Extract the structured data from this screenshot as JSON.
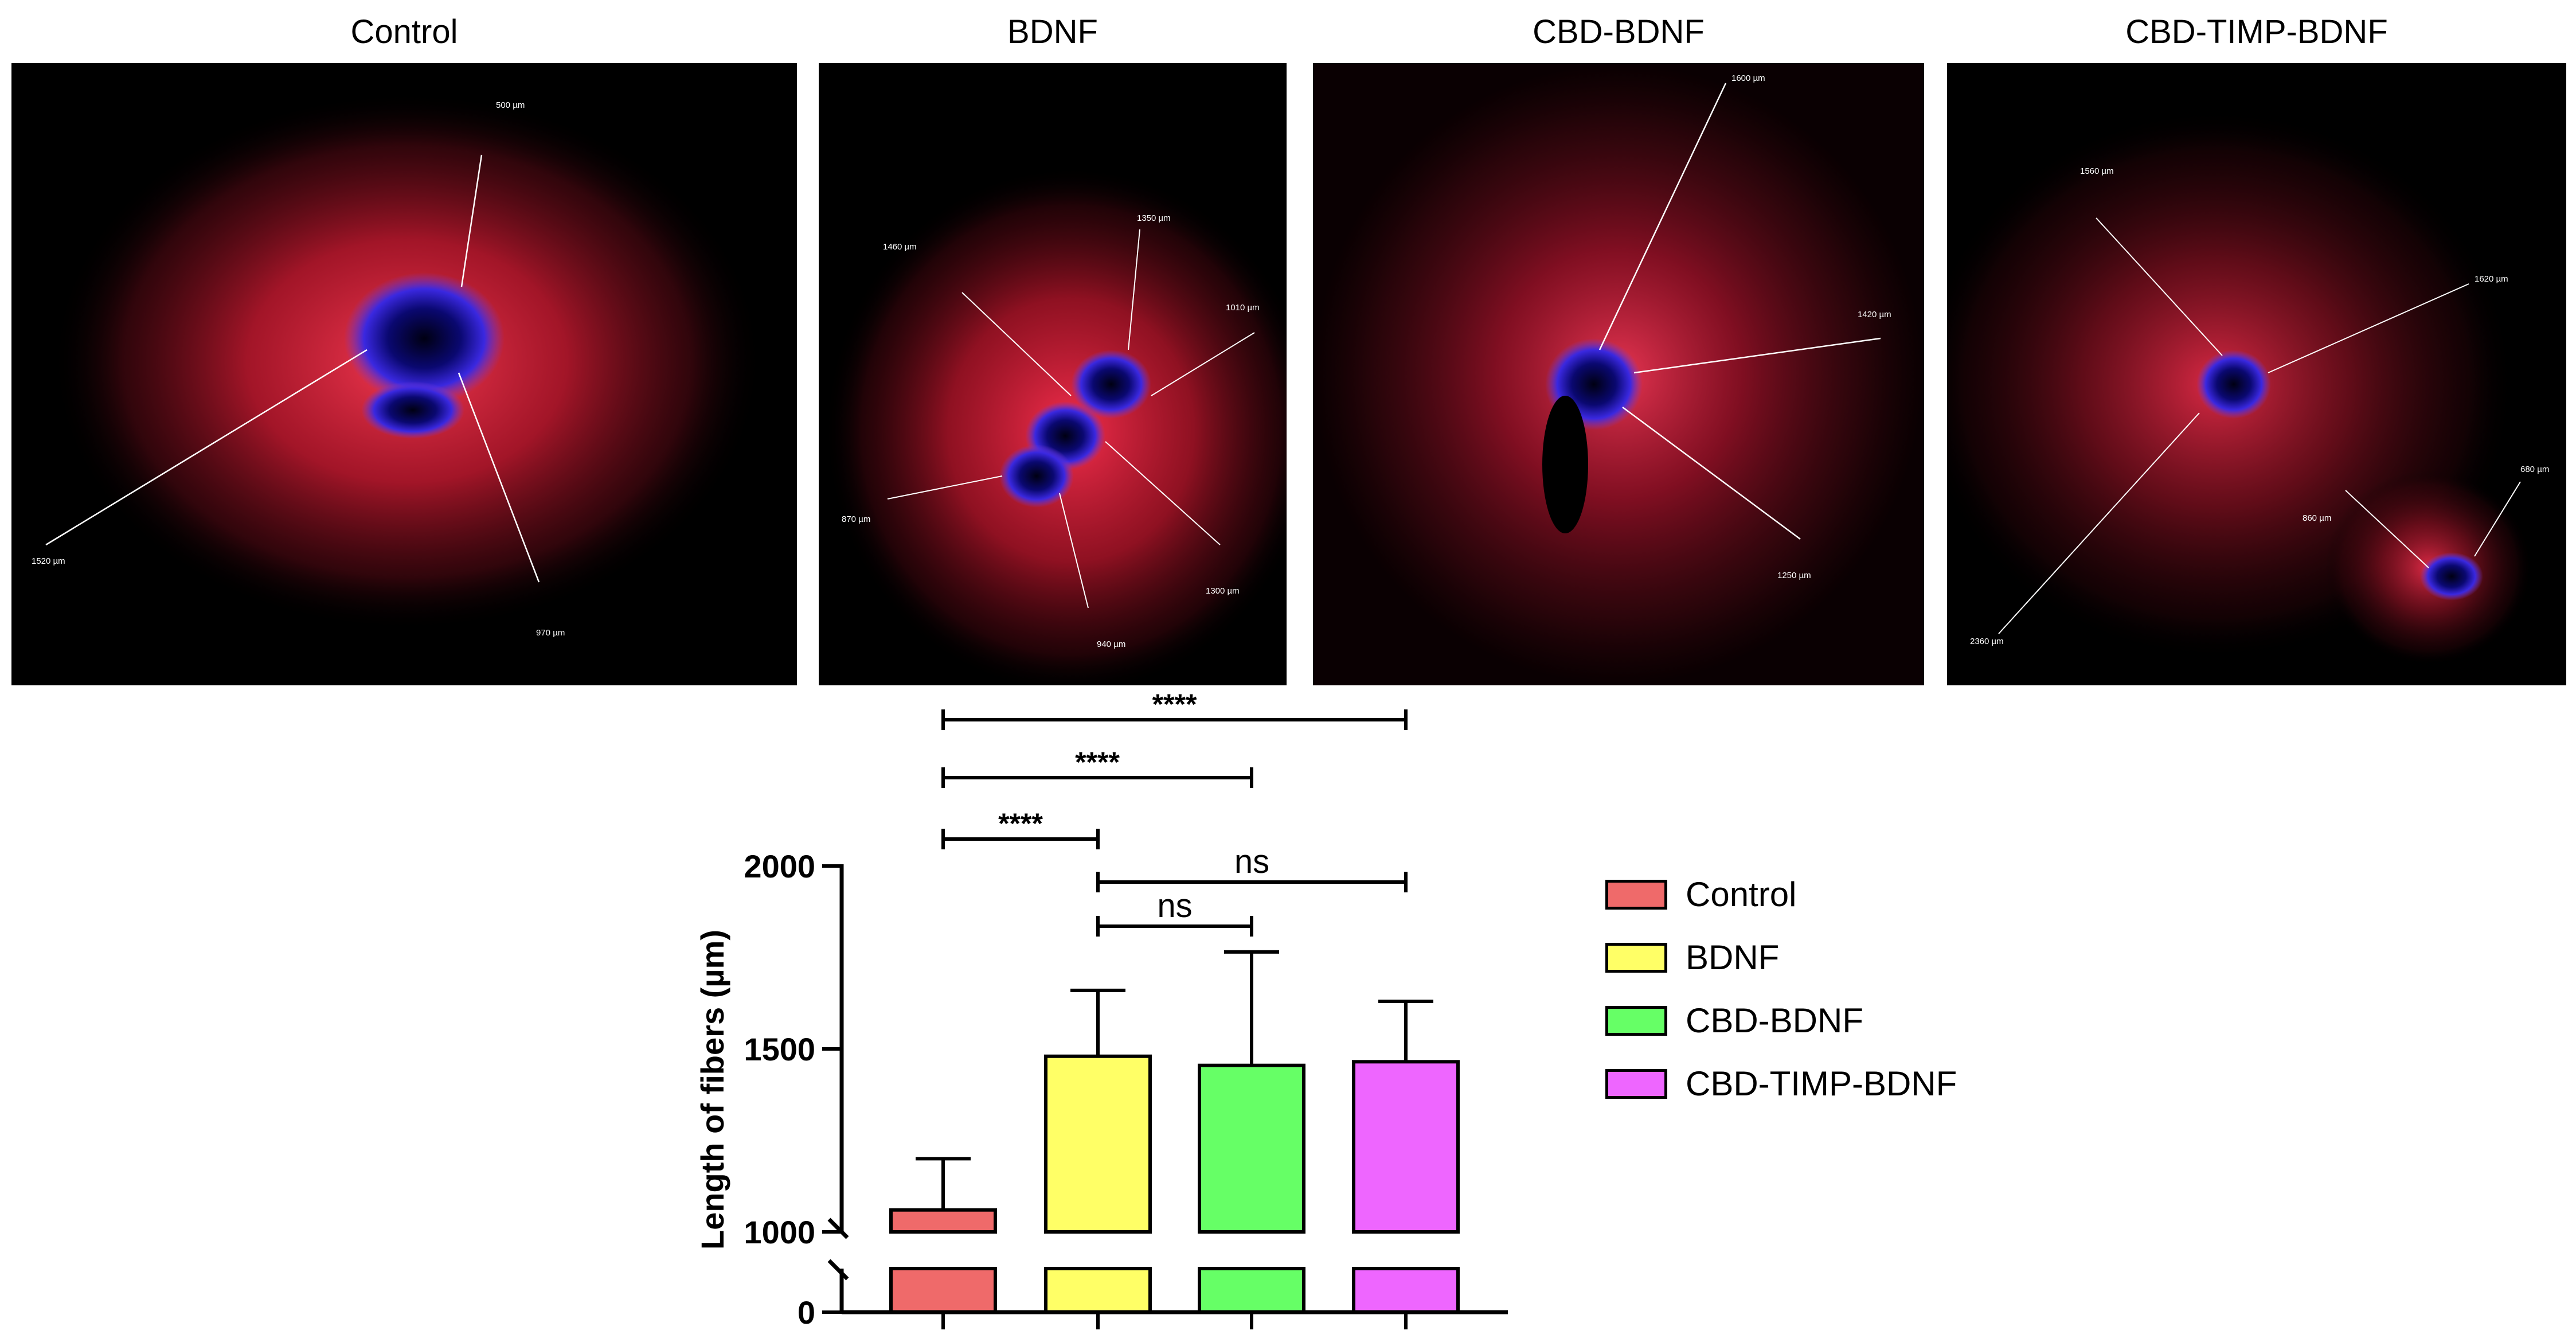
{
  "panels": [
    {
      "title": "Control",
      "measurements": [
        "500 µm",
        "1520 µm",
        "970 µm"
      ],
      "dots": [
        "blue-main",
        "blue-second"
      ]
    },
    {
      "title": "BDNF",
      "measurements": [
        "1350 µm",
        "1460 µm",
        "1010 µm",
        "870 µm",
        "1300 µm",
        "940 µm"
      ]
    },
    {
      "title": "CBD-BDNF",
      "measurements": [
        "1600 µm",
        "1420 µm",
        "1250 µm"
      ]
    },
    {
      "title": "CBD-TIMP-BDNF",
      "measurements": [
        "1560 µm",
        "1620 µm",
        "680 µm",
        "860 µm",
        "2360 µm"
      ]
    }
  ],
  "chart_data": {
    "type": "bar",
    "categories": [
      "Control",
      "BDNF",
      "CBD-BDNF",
      "CBD-TIMP-BDNF"
    ],
    "values": [
      1060,
      1480,
      1455,
      1465
    ],
    "errors": [
      140,
      180,
      310,
      165
    ],
    "colors": [
      "#ef6a6a",
      "#ffff66",
      "#66ff66",
      "#ee66ff"
    ],
    "ylabel": "Length of fibers (µm)",
    "yticks_upper": [
      1000,
      1500,
      2000
    ],
    "ytick_lower": [
      0
    ],
    "ylim_upper": [
      1000,
      2000
    ],
    "axis_break": true,
    "legend_position": "right",
    "comparisons": [
      {
        "from": 0,
        "to": 3,
        "label": "****"
      },
      {
        "from": 0,
        "to": 2,
        "label": "****"
      },
      {
        "from": 0,
        "to": 1,
        "label": "****"
      },
      {
        "from": 1,
        "to": 3,
        "label": "ns"
      },
      {
        "from": 1,
        "to": 2,
        "label": "ns"
      }
    ]
  }
}
